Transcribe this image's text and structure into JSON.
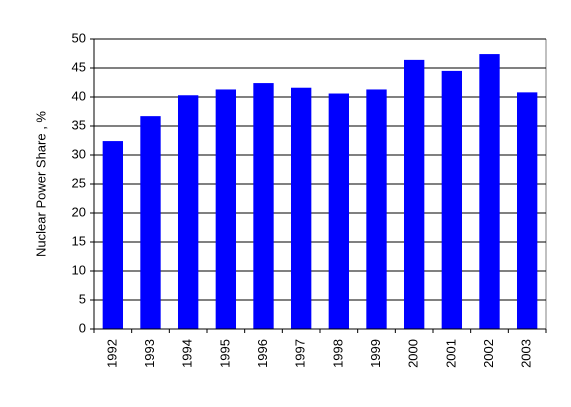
{
  "chart_data": {
    "type": "bar",
    "y_label": "Nuclear Power Share , %",
    "categories": [
      "1992",
      "1993",
      "1994",
      "1995",
      "1996",
      "1997",
      "1998",
      "1999",
      "2000",
      "2001",
      "2002",
      "2003"
    ],
    "values": [
      32.4,
      36.7,
      40.3,
      41.3,
      42.4,
      41.6,
      40.6,
      41.3,
      46.4,
      44.5,
      47.4,
      40.8
    ],
    "color": "#0000ff",
    "ylim": [
      0,
      50
    ],
    "yticks": [
      0,
      5,
      10,
      15,
      20,
      25,
      30,
      35,
      40,
      45,
      50
    ],
    "grid": true
  }
}
